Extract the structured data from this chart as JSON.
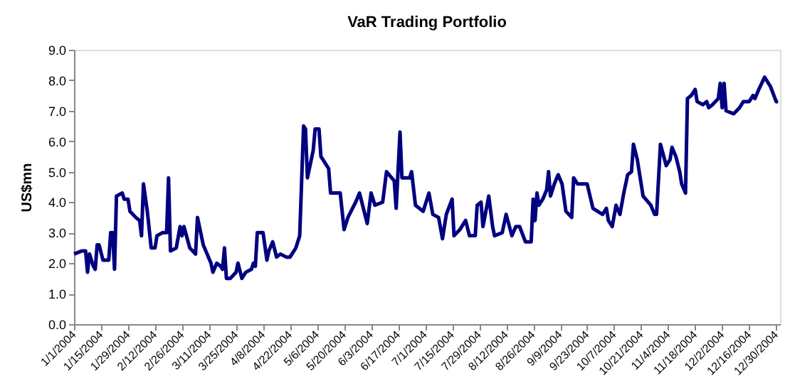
{
  "chart_data": {
    "type": "line",
    "title": "VaR Trading Portfolio",
    "ylabel": "US$mn",
    "xlim": [
      "2004-01-01",
      "2005-01-01"
    ],
    "ylim": [
      0,
      9
    ],
    "yticks": [
      {
        "value": 0,
        "label": "0.0"
      },
      {
        "value": 1,
        "label": "1.0"
      },
      {
        "value": 2,
        "label": "2.0"
      },
      {
        "value": 3,
        "label": "3.0"
      },
      {
        "value": 4,
        "label": "4.0"
      },
      {
        "value": 5,
        "label": "5.0"
      },
      {
        "value": 6,
        "label": "6.0"
      },
      {
        "value": 7,
        "label": "7.0"
      },
      {
        "value": 8,
        "label": "8.0"
      },
      {
        "value": 9,
        "label": "9.0"
      }
    ],
    "xticks": [
      {
        "value": "2004-01-01",
        "label": "1/1/2004"
      },
      {
        "value": "2004-01-15",
        "label": "1/15/2004"
      },
      {
        "value": "2004-01-29",
        "label": "1/29/2004"
      },
      {
        "value": "2004-02-12",
        "label": "2/12/2004"
      },
      {
        "value": "2004-02-26",
        "label": "2/26/2004"
      },
      {
        "value": "2004-03-11",
        "label": "3/11/2004"
      },
      {
        "value": "2004-03-25",
        "label": "3/25/2004"
      },
      {
        "value": "2004-04-08",
        "label": "4/8/2004"
      },
      {
        "value": "2004-04-22",
        "label": "4/22/2004"
      },
      {
        "value": "2004-05-06",
        "label": "5/6/2004"
      },
      {
        "value": "2004-05-20",
        "label": "5/20/2004"
      },
      {
        "value": "2004-06-03",
        "label": "6/3/2004"
      },
      {
        "value": "2004-06-17",
        "label": "6/17/2004"
      },
      {
        "value": "2004-07-01",
        "label": "7/1/2004"
      },
      {
        "value": "2004-07-15",
        "label": "7/15/2004"
      },
      {
        "value": "2004-07-29",
        "label": "7/29/2004"
      },
      {
        "value": "2004-08-12",
        "label": "8/12/2004"
      },
      {
        "value": "2004-08-26",
        "label": "8/26/2004"
      },
      {
        "value": "2004-09-09",
        "label": "9/9/2004"
      },
      {
        "value": "2004-09-23",
        "label": "9/23/2004"
      },
      {
        "value": "2004-10-07",
        "label": "10/7/2004"
      },
      {
        "value": "2004-10-21",
        "label": "10/21/2004"
      },
      {
        "value": "2004-11-04",
        "label": "11/4/2004"
      },
      {
        "value": "2004-11-18",
        "label": "11/18/2004"
      },
      {
        "value": "2004-12-02",
        "label": "12/2/2004"
      },
      {
        "value": "2004-12-16",
        "label": "12/16/2004"
      },
      {
        "value": "2004-12-30",
        "label": "12/30/2004"
      }
    ],
    "grid": false,
    "marker": "none",
    "line_style": "solid",
    "series": [
      {
        "color": "#000080",
        "x": [
          "2004-01-01",
          "2004-01-05",
          "2004-01-07",
          "2004-01-08",
          "2004-01-09",
          "2004-01-11",
          "2004-01-12",
          "2004-01-13",
          "2004-01-14",
          "2004-01-16",
          "2004-01-19",
          "2004-01-20",
          "2004-01-21",
          "2004-01-22",
          "2004-01-23",
          "2004-01-26",
          "2004-01-27",
          "2004-01-29",
          "2004-01-30",
          "2004-02-02",
          "2004-02-04",
          "2004-02-05",
          "2004-02-06",
          "2004-02-08",
          "2004-02-10",
          "2004-02-12",
          "2004-02-13",
          "2004-02-16",
          "2004-02-18",
          "2004-02-19",
          "2004-02-20",
          "2004-02-23",
          "2004-02-25",
          "2004-02-26",
          "2004-02-27",
          "2004-03-01",
          "2004-03-04",
          "2004-03-05",
          "2004-03-08",
          "2004-03-10",
          "2004-03-12",
          "2004-03-13",
          "2004-03-15",
          "2004-03-17",
          "2004-03-18",
          "2004-03-19",
          "2004-03-20",
          "2004-03-22",
          "2004-03-25",
          "2004-03-26",
          "2004-03-28",
          "2004-03-30",
          "2004-04-02",
          "2004-04-03",
          "2004-04-04",
          "2004-04-05",
          "2004-04-08",
          "2004-04-10",
          "2004-04-11",
          "2004-04-13",
          "2004-04-15",
          "2004-04-17",
          "2004-04-20",
          "2004-04-22",
          "2004-04-25",
          "2004-04-27",
          "2004-04-29",
          "2004-04-30",
          "2004-05-01",
          "2004-05-04",
          "2004-05-05",
          "2004-05-07",
          "2004-05-08",
          "2004-05-12",
          "2004-05-13",
          "2004-05-18",
          "2004-05-20",
          "2004-05-22",
          "2004-05-26",
          "2004-05-28",
          "2004-05-30",
          "2004-06-01",
          "2004-06-03",
          "2004-06-05",
          "2004-06-09",
          "2004-06-11",
          "2004-06-15",
          "2004-06-16",
          "2004-06-18",
          "2004-06-19",
          "2004-06-23",
          "2004-06-24",
          "2004-06-26",
          "2004-06-30",
          "2004-07-03",
          "2004-07-05",
          "2004-07-08",
          "2004-07-10",
          "2004-07-12",
          "2004-07-15",
          "2004-07-16",
          "2004-07-19",
          "2004-07-22",
          "2004-07-24",
          "2004-07-27",
          "2004-07-28",
          "2004-07-30",
          "2004-07-31",
          "2004-08-03",
          "2004-08-05",
          "2004-08-06",
          "2004-08-10",
          "2004-08-12",
          "2004-08-15",
          "2004-08-17",
          "2004-08-19",
          "2004-08-22",
          "2004-08-25",
          "2004-08-26",
          "2004-08-27",
          "2004-08-28",
          "2004-08-29",
          "2004-08-31",
          "2004-09-02",
          "2004-09-03",
          "2004-09-04",
          "2004-09-06",
          "2004-09-08",
          "2004-09-10",
          "2004-09-12",
          "2004-09-15",
          "2004-09-16",
          "2004-09-18",
          "2004-09-23",
          "2004-09-26",
          "2004-10-01",
          "2004-10-03",
          "2004-10-04",
          "2004-10-06",
          "2004-10-08",
          "2004-10-10",
          "2004-10-12",
          "2004-10-14",
          "2004-10-16",
          "2004-10-17",
          "2004-10-19",
          "2004-10-22",
          "2004-10-26",
          "2004-10-28",
          "2004-10-29",
          "2004-10-31",
          "2004-11-03",
          "2004-11-05",
          "2004-11-06",
          "2004-11-08",
          "2004-11-10",
          "2004-11-11",
          "2004-11-13",
          "2004-11-14",
          "2004-11-16",
          "2004-11-18",
          "2004-11-19",
          "2004-11-22",
          "2004-11-24",
          "2004-11-25",
          "2004-11-27",
          "2004-11-30",
          "2004-12-01",
          "2004-12-02",
          "2004-12-03",
          "2004-12-04",
          "2004-12-08",
          "2004-12-11",
          "2004-12-13",
          "2004-12-16",
          "2004-12-18",
          "2004-12-19",
          "2004-12-21",
          "2004-12-24",
          "2004-12-27",
          "2004-12-30",
          "2004-12-31"
        ],
        "values": [
          2.3,
          2.4,
          2.4,
          1.7,
          2.3,
          1.9,
          1.8,
          2.6,
          2.6,
          2.1,
          2.1,
          3.0,
          3.0,
          1.8,
          4.2,
          4.3,
          4.1,
          4.1,
          3.7,
          3.5,
          3.4,
          2.9,
          4.6,
          3.7,
          2.5,
          2.5,
          2.9,
          3.0,
          3.0,
          4.8,
          2.4,
          2.5,
          3.2,
          2.9,
          3.2,
          2.5,
          2.3,
          3.5,
          2.6,
          2.3,
          2.0,
          1.7,
          2.0,
          1.9,
          1.8,
          2.5,
          1.5,
          1.5,
          1.7,
          2.0,
          1.5,
          1.7,
          1.8,
          2.0,
          1.9,
          3.0,
          3.0,
          2.1,
          2.4,
          2.7,
          2.2,
          2.3,
          2.2,
          2.2,
          2.5,
          2.9,
          6.5,
          6.4,
          4.8,
          5.7,
          6.4,
          6.4,
          5.5,
          5.1,
          4.3,
          4.3,
          3.1,
          3.5,
          4.0,
          4.3,
          3.8,
          3.3,
          4.3,
          3.9,
          4.0,
          5.0,
          4.7,
          3.8,
          6.3,
          4.8,
          4.8,
          5.0,
          3.9,
          3.7,
          4.3,
          3.6,
          3.5,
          2.8,
          3.6,
          4.1,
          2.9,
          3.1,
          3.4,
          2.9,
          2.9,
          3.9,
          4.0,
          3.2,
          4.2,
          3.2,
          2.9,
          3.0,
          3.6,
          2.9,
          3.2,
          3.2,
          2.7,
          2.7,
          4.1,
          3.4,
          4.3,
          3.9,
          4.1,
          4.4,
          5.0,
          4.2,
          4.6,
          4.9,
          4.6,
          3.7,
          3.5,
          4.8,
          4.6,
          4.6,
          3.8,
          3.6,
          3.8,
          3.4,
          3.2,
          3.9,
          3.6,
          4.3,
          4.9,
          5.0,
          5.9,
          5.4,
          4.2,
          3.9,
          3.6,
          3.6,
          5.9,
          5.2,
          5.4,
          5.8,
          5.5,
          5.0,
          4.6,
          4.3,
          7.4,
          7.5,
          7.7,
          7.3,
          7.2,
          7.3,
          7.1,
          7.2,
          7.4,
          7.9,
          7.1,
          7.9,
          7.0,
          6.9,
          7.1,
          7.3,
          7.3,
          7.5,
          7.4,
          7.7,
          8.1,
          7.8,
          7.3,
          7.3
        ]
      }
    ]
  }
}
